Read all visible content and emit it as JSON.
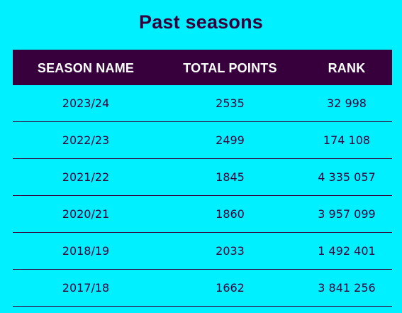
{
  "page": {
    "title": "Past seasons"
  },
  "table": {
    "headers": [
      "SEASON NAME",
      "TOTAL POINTS",
      "RANK"
    ],
    "rows": [
      {
        "season": "2023/24",
        "points": "2535",
        "rank": "32 998"
      },
      {
        "season": "2022/23",
        "points": "2499",
        "rank": "174 108"
      },
      {
        "season": "2021/22",
        "points": "1845",
        "rank": "4 335 057"
      },
      {
        "season": "2020/21",
        "points": "1860",
        "rank": "3 957 099"
      },
      {
        "season": "2018/19",
        "points": "2033",
        "rank": "1 492 401"
      },
      {
        "season": "2017/18",
        "points": "1662",
        "rank": "3 841 256"
      }
    ]
  },
  "colors": {
    "background": "#00f0ff",
    "header_background": "#37003c",
    "header_text": "#ffffff",
    "text": "#37003c",
    "divider": "#37003c"
  }
}
